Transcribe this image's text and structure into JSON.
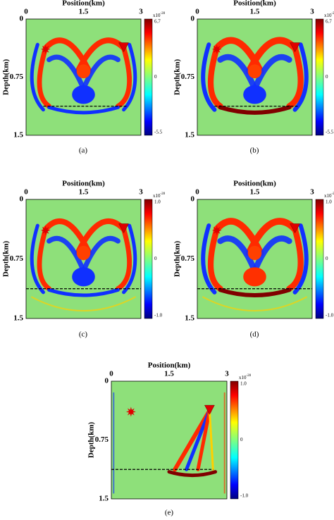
{
  "panels": [
    {
      "x_label": "Position(km)",
      "x_ticks": [
        "0",
        "1.5",
        "3"
      ],
      "y_label": "Depth(km)",
      "y_ticks": [
        "0",
        "0.75",
        "1.5"
      ],
      "colorbar_base": "x10",
      "colorbar_exponent": "-28",
      "colorbar_ticks": [
        "6.7",
        "0",
        "-5.5"
      ],
      "caption": "(a)"
    },
    {
      "x_label": "Position(km)",
      "x_ticks": [
        "0",
        "1.5",
        "3"
      ],
      "y_label": "Depth(km)",
      "y_ticks": [
        "0",
        "0.75",
        "1.5"
      ],
      "colorbar_base": "x10",
      "colorbar_exponent": "-28",
      "colorbar_ticks": [
        "6.7",
        "0",
        "-5.5"
      ],
      "caption": "(b)"
    },
    {
      "x_label": "Position(km)",
      "x_ticks": [
        "0",
        "1.5",
        "3"
      ],
      "y_label": "Depth(km)",
      "y_ticks": [
        "0",
        "0.75",
        "1.5"
      ],
      "colorbar_base": "x10",
      "colorbar_exponent": "-28",
      "colorbar_ticks": [
        "1.0",
        "0",
        "-1.0"
      ],
      "caption": "(c)"
    },
    {
      "x_label": "Position(km)",
      "x_ticks": [
        "0",
        "1.5",
        "3"
      ],
      "y_label": "Depth(km)",
      "y_ticks": [
        "0",
        "0.75",
        "1.5"
      ],
      "colorbar_base": "x10",
      "colorbar_exponent": "-28",
      "colorbar_ticks": [
        "1.0",
        "0",
        "-1.0"
      ],
      "caption": "(d)"
    },
    {
      "x_label": "Position(km)",
      "x_ticks": [
        "0",
        "1.5",
        "3"
      ],
      "y_label": "Depth(km)",
      "y_ticks": [
        "0",
        "0.75",
        "1.5"
      ],
      "colorbar_base": "x10",
      "colorbar_exponent": "-28",
      "colorbar_ticks": [
        "1.0",
        "0",
        "-1.0"
      ],
      "caption": "(e)"
    }
  ]
}
